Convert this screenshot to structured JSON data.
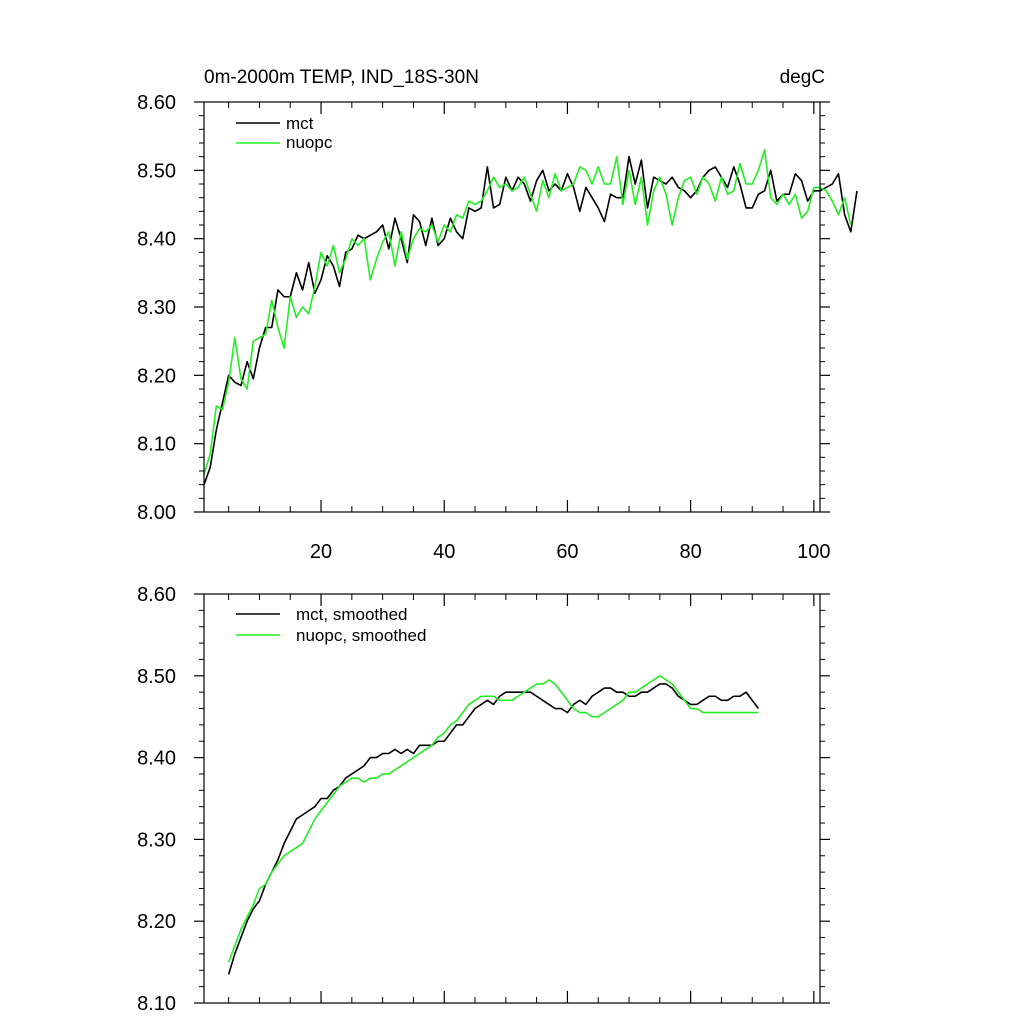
{
  "chart_data": [
    {
      "type": "line",
      "title": "0m-2000m TEMP, IND_18S-30N",
      "units": "degC",
      "xlim": [
        1,
        101
      ],
      "ylim": [
        8.0,
        8.6
      ],
      "xticks": [
        20,
        40,
        60,
        80,
        100
      ],
      "xticklabels": [
        "20",
        "40",
        "60",
        "80",
        "100"
      ],
      "yticks": [
        8.0,
        8.1,
        8.2,
        8.3,
        8.4,
        8.5,
        8.6
      ],
      "yticklabels": [
        "8.00",
        "8.10",
        "8.20",
        "8.30",
        "8.40",
        "8.50",
        "8.60"
      ],
      "grid": false,
      "legend_position": "top-left",
      "x_start": 1,
      "series": [
        {
          "name": "mct",
          "color": "#000000",
          "values": [
            8.04,
            8.065,
            8.12,
            8.16,
            8.2,
            8.19,
            8.185,
            8.22,
            8.195,
            8.24,
            8.27,
            8.27,
            8.325,
            8.315,
            8.315,
            8.35,
            8.325,
            8.365,
            8.32,
            8.34,
            8.375,
            8.36,
            8.33,
            8.38,
            8.385,
            8.405,
            8.4,
            8.405,
            8.41,
            8.42,
            8.385,
            8.43,
            8.4,
            8.365,
            8.435,
            8.425,
            8.39,
            8.43,
            8.39,
            8.4,
            8.43,
            8.41,
            8.4,
            8.445,
            8.44,
            8.445,
            8.505,
            8.445,
            8.45,
            8.49,
            8.47,
            8.49,
            8.48,
            8.455,
            8.485,
            8.5,
            8.47,
            8.48,
            8.47,
            8.495,
            8.475,
            8.44,
            8.475,
            8.46,
            8.445,
            8.425,
            8.465,
            8.46,
            8.46,
            8.52,
            8.48,
            8.515,
            8.445,
            8.49,
            8.485,
            8.48,
            8.49,
            8.475,
            8.47,
            8.46,
            8.47,
            8.49,
            8.5,
            8.505,
            8.49,
            8.475,
            8.505,
            8.48,
            8.445,
            8.445,
            8.465,
            8.47,
            8.5,
            8.455,
            8.465,
            8.465,
            8.495,
            8.485,
            8.455,
            8.47,
            8.47,
            8.475,
            8.48,
            8.495,
            8.435,
            8.41,
            8.47
          ]
        },
        {
          "name": "nuopc",
          "color": "#22ee22",
          "values": [
            8.055,
            8.085,
            8.155,
            8.15,
            8.19,
            8.255,
            8.195,
            8.18,
            8.25,
            8.255,
            8.26,
            8.31,
            8.27,
            8.24,
            8.315,
            8.285,
            8.3,
            8.29,
            8.33,
            8.38,
            8.36,
            8.39,
            8.35,
            8.37,
            8.4,
            8.39,
            8.4,
            8.34,
            8.37,
            8.395,
            8.41,
            8.36,
            8.41,
            8.37,
            8.4,
            8.415,
            8.41,
            8.42,
            8.395,
            8.42,
            8.41,
            8.435,
            8.43,
            8.455,
            8.45,
            8.455,
            8.47,
            8.49,
            8.475,
            8.48,
            8.47,
            8.475,
            8.49,
            8.465,
            8.44,
            8.485,
            8.46,
            8.495,
            8.47,
            8.475,
            8.48,
            8.505,
            8.5,
            8.48,
            8.505,
            8.48,
            8.48,
            8.52,
            8.45,
            8.5,
            8.45,
            8.49,
            8.42,
            8.47,
            8.49,
            8.465,
            8.42,
            8.46,
            8.485,
            8.49,
            8.465,
            8.49,
            8.48,
            8.455,
            8.49,
            8.465,
            8.47,
            8.51,
            8.48,
            8.48,
            8.5,
            8.53,
            8.46,
            8.45,
            8.465,
            8.45,
            8.465,
            8.43,
            8.44,
            8.475,
            8.475,
            8.47,
            8.455,
            8.435,
            8.46,
            8.42
          ]
        }
      ]
    },
    {
      "type": "line",
      "title": "",
      "xlim": [
        1,
        101
      ],
      "ylim": [
        8.1,
        8.6
      ],
      "xticks": [
        20,
        40,
        60,
        80,
        100
      ],
      "xticklabels": [],
      "yticks": [
        8.1,
        8.2,
        8.3,
        8.4,
        8.5,
        8.6
      ],
      "yticklabels": [
        "8.10",
        "8.20",
        "8.30",
        "8.40",
        "8.50",
        "8.60"
      ],
      "grid": false,
      "legend_position": "top-left",
      "x_start": 5,
      "series": [
        {
          "name": "mct, smoothed",
          "color": "#000000",
          "values": [
            8.135,
            8.16,
            8.18,
            8.2,
            8.215,
            8.225,
            8.245,
            8.26,
            8.275,
            8.295,
            8.31,
            8.325,
            8.33,
            8.335,
            8.34,
            8.35,
            8.35,
            8.36,
            8.365,
            8.375,
            8.38,
            8.385,
            8.39,
            8.4,
            8.4,
            8.405,
            8.405,
            8.41,
            8.405,
            8.41,
            8.405,
            8.415,
            8.415,
            8.415,
            8.42,
            8.42,
            8.43,
            8.44,
            8.44,
            8.45,
            8.46,
            8.465,
            8.47,
            8.465,
            8.475,
            8.48,
            8.48,
            8.48,
            8.48,
            8.48,
            8.475,
            8.47,
            8.465,
            8.46,
            8.46,
            8.455,
            8.465,
            8.47,
            8.465,
            8.475,
            8.48,
            8.485,
            8.485,
            8.48,
            8.48,
            8.475,
            8.475,
            8.48,
            8.48,
            8.485,
            8.49,
            8.49,
            8.485,
            8.475,
            8.47,
            8.465,
            8.465,
            8.47,
            8.475,
            8.475,
            8.47,
            8.47,
            8.475,
            8.475,
            8.48,
            8.47,
            8.46
          ]
        },
        {
          "name": "nuopc, smoothed",
          "color": "#22ee22",
          "values": [
            8.15,
            8.17,
            8.19,
            8.205,
            8.22,
            8.24,
            8.245,
            8.26,
            8.27,
            8.28,
            8.285,
            8.29,
            8.295,
            8.31,
            8.325,
            8.335,
            8.345,
            8.355,
            8.365,
            8.37,
            8.375,
            8.375,
            8.37,
            8.375,
            8.375,
            8.38,
            8.38,
            8.385,
            8.39,
            8.395,
            8.4,
            8.405,
            8.41,
            8.415,
            8.425,
            8.43,
            8.44,
            8.445,
            8.455,
            8.465,
            8.47,
            8.475,
            8.475,
            8.475,
            8.47,
            8.47,
            8.47,
            8.475,
            8.48,
            8.485,
            8.49,
            8.49,
            8.495,
            8.49,
            8.48,
            8.47,
            8.46,
            8.455,
            8.455,
            8.45,
            8.45,
            8.455,
            8.46,
            8.465,
            8.47,
            8.48,
            8.48,
            8.485,
            8.49,
            8.495,
            8.5,
            8.495,
            8.49,
            8.48,
            8.47,
            8.46,
            8.46,
            8.455,
            8.455,
            8.455,
            8.455,
            8.455,
            8.455,
            8.455,
            8.455,
            8.455,
            8.455
          ]
        }
      ]
    }
  ]
}
